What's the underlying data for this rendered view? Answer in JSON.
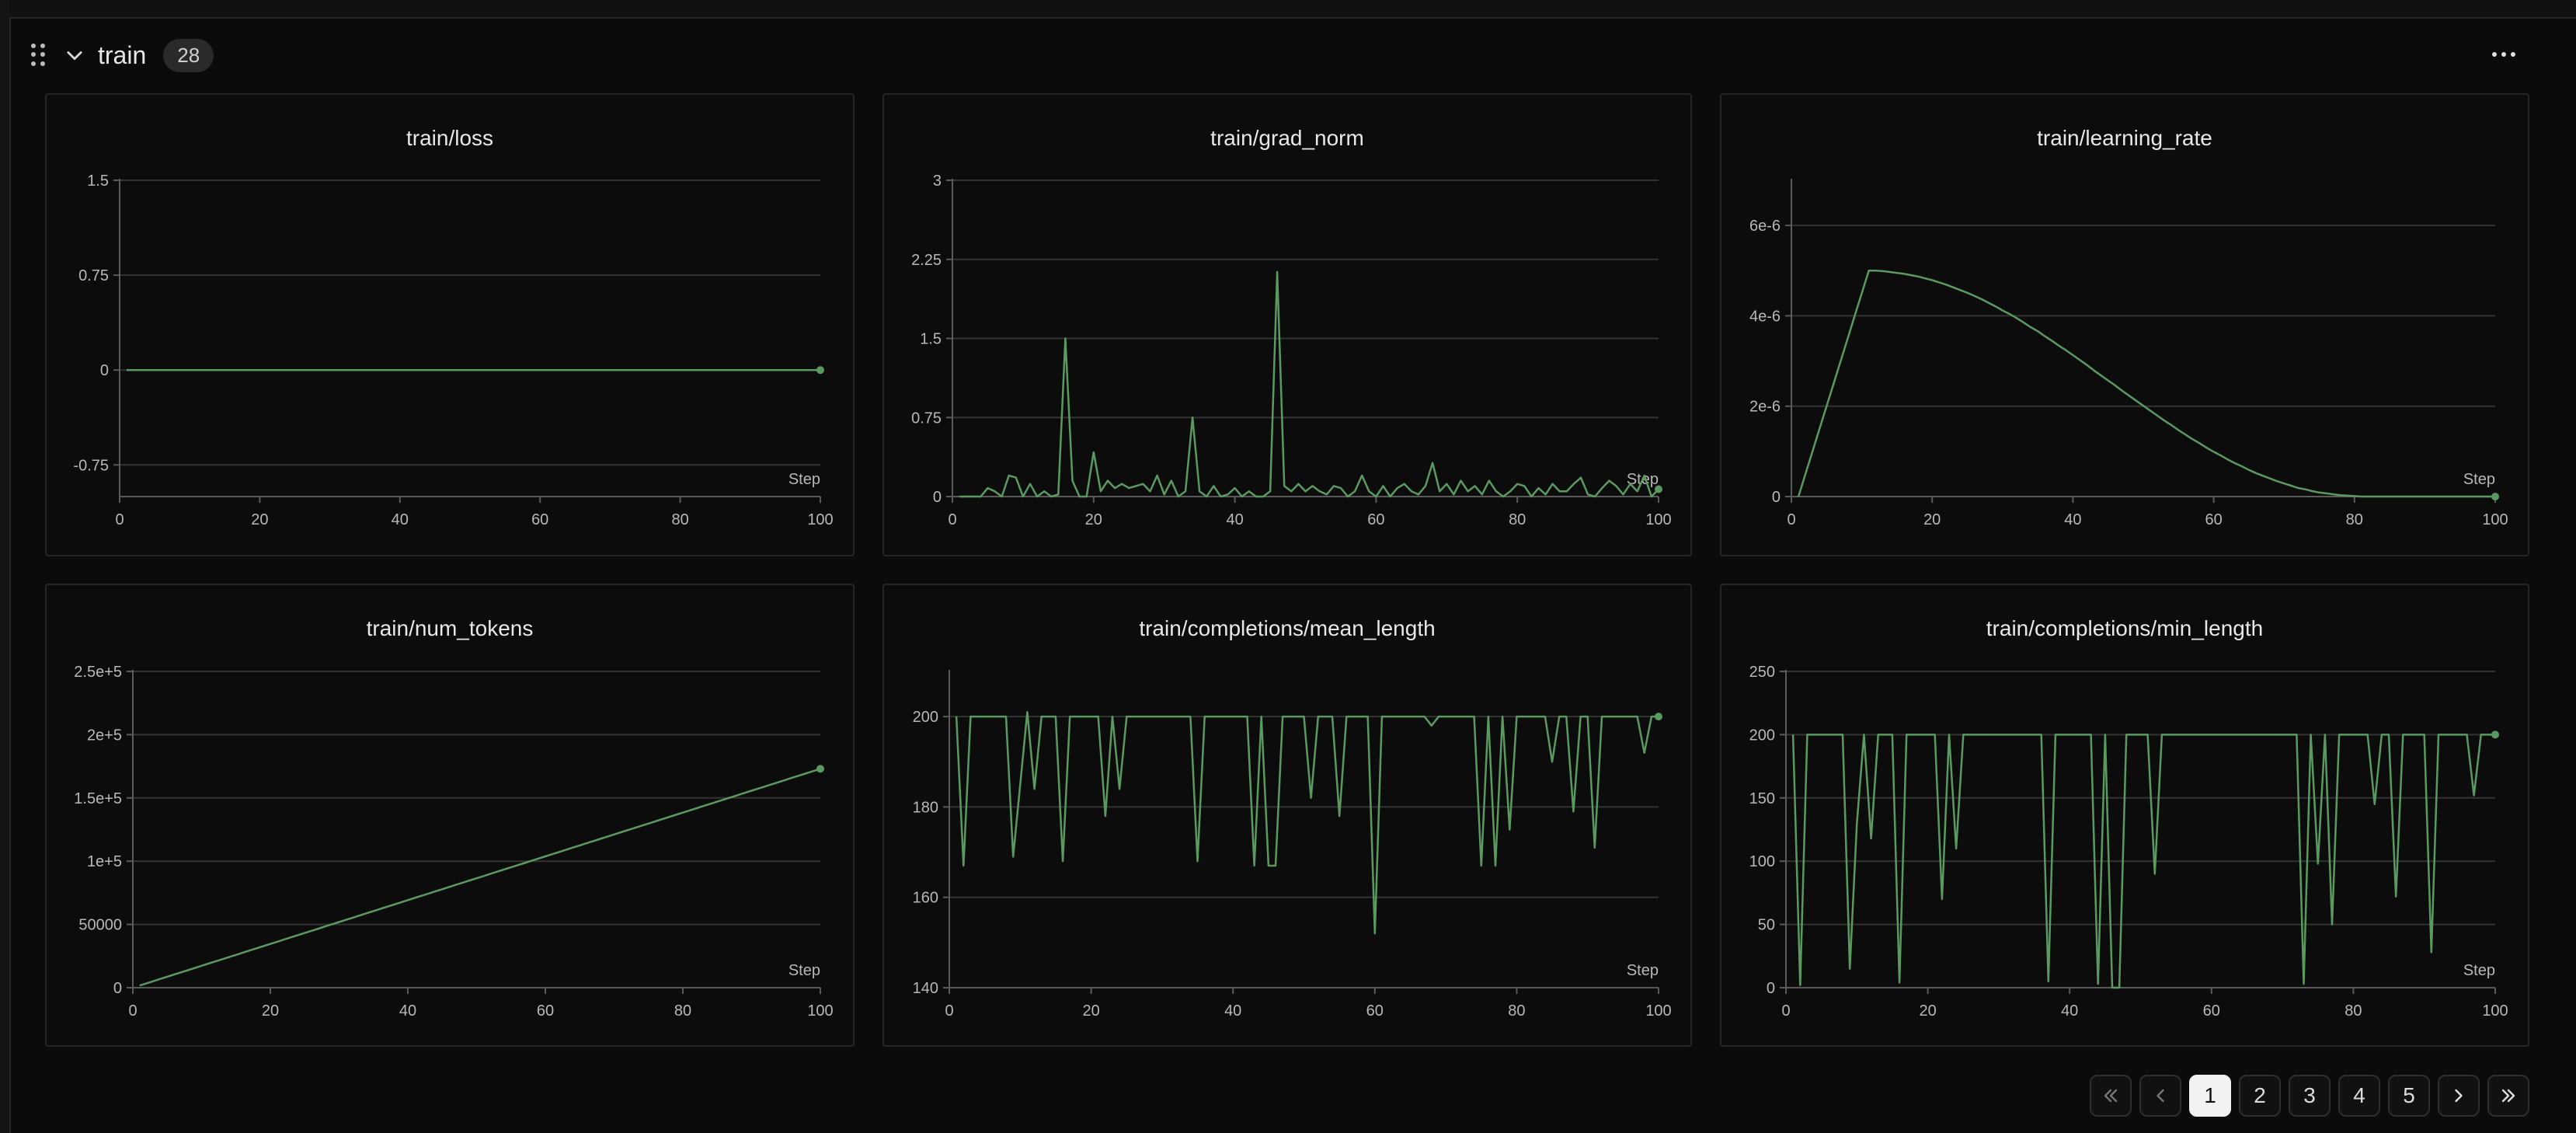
{
  "section": {
    "title": "train",
    "count": "28"
  },
  "colors": {
    "line": "#5a9a60",
    "grid": "#333333",
    "axis": "#5a5a5a",
    "tick": "#b8b8b8"
  },
  "pagination": {
    "pages": [
      "1",
      "2",
      "3",
      "4",
      "5"
    ],
    "active": "1"
  },
  "chart_data": [
    {
      "type": "line",
      "title": "train/loss",
      "xlabel": "Step",
      "ylabel": "",
      "xlim": [
        0,
        100
      ],
      "ylim": [
        -1,
        1.5
      ],
      "yticks": [
        1.5,
        0.75,
        0,
        -0.75
      ],
      "ytick_labels": [
        "1.5",
        "0.75",
        "0",
        "-0.75"
      ],
      "xticks": [
        0,
        20,
        40,
        60,
        80,
        100
      ],
      "xtick_labels": [
        "0",
        "20",
        "40",
        "60",
        "80",
        "100"
      ],
      "x_start": 1,
      "x_step": 1,
      "values": [
        0,
        0,
        0,
        0,
        0,
        0,
        0,
        0,
        0,
        0,
        0,
        0,
        0,
        0,
        0,
        0,
        0,
        0,
        0,
        0,
        0,
        0,
        0,
        0,
        0,
        0,
        0,
        0,
        0,
        0,
        0,
        0,
        0,
        0,
        0,
        0,
        0,
        0,
        0,
        0,
        0,
        0,
        0,
        0,
        0,
        0,
        0,
        0,
        0,
        0,
        0,
        0,
        0,
        0,
        0,
        0,
        0,
        0,
        0,
        0,
        0,
        0,
        0,
        0,
        0,
        0,
        0,
        0,
        0,
        0,
        0,
        0,
        0,
        0,
        0,
        0,
        0,
        0,
        0,
        0,
        0,
        0,
        0,
        0,
        0,
        0,
        0,
        0,
        0,
        0,
        0,
        0,
        0,
        0,
        0,
        0,
        0,
        0,
        0,
        0
      ],
      "grid": true
    },
    {
      "type": "line",
      "title": "train/grad_norm",
      "xlabel": "Step",
      "ylabel": "",
      "xlim": [
        0,
        100
      ],
      "ylim": [
        0,
        3
      ],
      "yticks": [
        3,
        2.25,
        1.5,
        0.75,
        0
      ],
      "ytick_labels": [
        "3",
        "2.25",
        "1.5",
        "0.75",
        "0"
      ],
      "xticks": [
        0,
        20,
        40,
        60,
        80,
        100
      ],
      "xtick_labels": [
        "0",
        "20",
        "40",
        "60",
        "80",
        "100"
      ],
      "x_start": 1,
      "x_step": 1,
      "values": [
        0,
        0,
        0,
        0,
        0.08,
        0.05,
        0,
        0.2,
        0.18,
        0,
        0.12,
        0,
        0.05,
        0,
        0.02,
        1.5,
        0.15,
        0,
        0,
        0.42,
        0.05,
        0.15,
        0.08,
        0.12,
        0.08,
        0.1,
        0.12,
        0.05,
        0.2,
        0.02,
        0.15,
        0,
        0.05,
        0.75,
        0.05,
        0,
        0.1,
        0,
        0.02,
        0.08,
        0,
        0.05,
        0,
        0,
        0.05,
        2.13,
        0.1,
        0.05,
        0.12,
        0.05,
        0.1,
        0.05,
        0.02,
        0.1,
        0.08,
        0,
        0.05,
        0.2,
        0.05,
        0,
        0.1,
        0,
        0.08,
        0.12,
        0.05,
        0.02,
        0.1,
        0.32,
        0.05,
        0.12,
        0.02,
        0.15,
        0.05,
        0.1,
        0.02,
        0.15,
        0.05,
        0,
        0.05,
        0.12,
        0.1,
        0,
        0.08,
        0.02,
        0.12,
        0.05,
        0.05,
        0.12,
        0.18,
        0.02,
        0,
        0.08,
        0.15,
        0.1,
        0.02,
        0.12,
        0.05,
        0.2,
        0,
        0.07
      ],
      "grid": true
    },
    {
      "type": "line",
      "title": "train/learning_rate",
      "xlabel": "Step",
      "ylabel": "",
      "xlim": [
        0,
        100
      ],
      "ylim": [
        0,
        7e-06
      ],
      "yticks": [
        6e-06,
        4e-06,
        2e-06,
        0
      ],
      "ytick_labels": [
        "6e-6",
        "4e-6",
        "2e-6",
        "0"
      ],
      "xticks": [
        0,
        20,
        40,
        60,
        80,
        100
      ],
      "xtick_labels": [
        "0",
        "20",
        "40",
        "60",
        "80",
        "100"
      ],
      "x_start": 1,
      "x_step": 1,
      "values": [
        0,
        5e-07,
        1e-06,
        1.5e-06,
        2e-06,
        2.5e-06,
        3e-06,
        3.5e-06,
        4e-06,
        4.5e-06,
        5e-06,
        5e-06,
        4.99e-06,
        4.97e-06,
        4.95e-06,
        4.93e-06,
        4.9e-06,
        4.87e-06,
        4.83e-06,
        4.79e-06,
        4.74e-06,
        4.69e-06,
        4.63e-06,
        4.57e-06,
        4.51e-06,
        4.44e-06,
        4.37e-06,
        4.29e-06,
        4.21e-06,
        4.12e-06,
        4.04e-06,
        3.95e-06,
        3.85e-06,
        3.75e-06,
        3.66e-06,
        3.55e-06,
        3.45e-06,
        3.34e-06,
        3.24e-06,
        3.13e-06,
        3.02e-06,
        2.91e-06,
        2.79e-06,
        2.68e-06,
        2.57e-06,
        2.46e-06,
        2.34e-06,
        2.23e-06,
        2.12e-06,
        2.01e-06,
        1.9e-06,
        1.79e-06,
        1.68e-06,
        1.58e-06,
        1.47e-06,
        1.37e-06,
        1.27e-06,
        1.18e-06,
        1.08e-06,
        9.9e-07,
        9.1e-07,
        8.2e-07,
        7.4e-07,
        6.7e-07,
        5.9e-07,
        5.2e-07,
        4.6e-07,
        4e-07,
        3.4e-07,
        2.9e-07,
        2.4e-07,
        1.9e-07,
        1.6e-07,
        1.2e-07,
        9e-08,
        7e-08,
        5e-08,
        3e-08,
        2e-08,
        1e-08,
        0,
        0,
        0,
        0,
        0,
        0,
        0,
        0,
        0,
        0,
        0,
        0,
        0,
        0,
        0,
        0,
        0,
        0,
        0,
        0
      ],
      "grid": true
    },
    {
      "type": "line",
      "title": "train/num_tokens",
      "xlabel": "Step",
      "ylabel": "",
      "xlim": [
        0,
        100
      ],
      "ylim": [
        0,
        250000
      ],
      "yticks": [
        250000,
        200000,
        150000,
        100000,
        50000,
        0
      ],
      "ytick_labels": [
        "2.5e+5",
        "2e+5",
        "1.5e+5",
        "1e+5",
        "50000",
        "0"
      ],
      "xticks": [
        0,
        20,
        40,
        60,
        80,
        100
      ],
      "xtick_labels": [
        "0",
        "20",
        "40",
        "60",
        "80",
        "100"
      ],
      "x_start": 1,
      "x_step": 1,
      "values": [
        1730,
        3460,
        5190,
        6920,
        8650,
        10380,
        12110,
        13840,
        15570,
        17300,
        19030,
        20760,
        22490,
        24220,
        25950,
        27680,
        29410,
        31140,
        32870,
        34600,
        36330,
        38060,
        39790,
        41520,
        43250,
        44980,
        46710,
        48440,
        50170,
        51900,
        53630,
        55360,
        57090,
        58820,
        60550,
        62280,
        64010,
        65740,
        67470,
        69200,
        70930,
        72660,
        74390,
        76120,
        77850,
        79580,
        81310,
        83040,
        84770,
        86500,
        88230,
        89960,
        91690,
        93420,
        95150,
        96880,
        98610,
        100340,
        102070,
        103800,
        105530,
        107260,
        108990,
        110720,
        112450,
        114180,
        115910,
        117640,
        119370,
        121100,
        122830,
        124560,
        126290,
        128020,
        129750,
        131480,
        133210,
        134940,
        136670,
        138400,
        140130,
        141860,
        143590,
        145320,
        147050,
        148780,
        150510,
        152240,
        153970,
        155700,
        157430,
        159160,
        160890,
        162620,
        164350,
        166080,
        167810,
        169540,
        171270,
        173000
      ],
      "grid": true
    },
    {
      "type": "line",
      "title": "train/completions/mean_length",
      "xlabel": "Step",
      "ylabel": "",
      "xlim": [
        0,
        100
      ],
      "ylim": [
        140,
        210
      ],
      "yticks": [
        200,
        180,
        160,
        140
      ],
      "ytick_labels": [
        "200",
        "180",
        "160",
        "140"
      ],
      "xticks": [
        0,
        20,
        40,
        60,
        80,
        100
      ],
      "xtick_labels": [
        "0",
        "20",
        "40",
        "60",
        "80",
        "100"
      ],
      "x_start": 1,
      "x_step": 1,
      "values": [
        200,
        167,
        200,
        200,
        200,
        200,
        200,
        200,
        169,
        185,
        201,
        184,
        200,
        200,
        200,
        168,
        200,
        200,
        200,
        200,
        200,
        178,
        200,
        184,
        200,
        200,
        200,
        200,
        200,
        200,
        200,
        200,
        200,
        200,
        168,
        200,
        200,
        200,
        200,
        200,
        200,
        200,
        167,
        200,
        167,
        167,
        200,
        200,
        200,
        200,
        182,
        200,
        200,
        200,
        178,
        200,
        200,
        200,
        200,
        152,
        200,
        200,
        200,
        200,
        200,
        200,
        200,
        198,
        200,
        200,
        200,
        200,
        200,
        200,
        167,
        200,
        167,
        200,
        175,
        200,
        200,
        200,
        200,
        200,
        190,
        200,
        200,
        179,
        200,
        200,
        171,
        200,
        200,
        200,
        200,
        200,
        200,
        192,
        200,
        200
      ],
      "grid": true
    },
    {
      "type": "line",
      "title": "train/completions/min_length",
      "xlabel": "Step",
      "ylabel": "",
      "xlim": [
        0,
        100
      ],
      "ylim": [
        0,
        250
      ],
      "yticks": [
        250,
        200,
        150,
        100,
        50,
        0
      ],
      "ytick_labels": [
        "250",
        "200",
        "150",
        "100",
        "50",
        "0"
      ],
      "xticks": [
        0,
        20,
        40,
        60,
        80,
        100
      ],
      "xtick_labels": [
        "0",
        "20",
        "40",
        "60",
        "80",
        "100"
      ],
      "x_start": 1,
      "x_step": 1,
      "values": [
        200,
        2,
        200,
        200,
        200,
        200,
        200,
        200,
        15,
        130,
        200,
        118,
        200,
        200,
        200,
        4,
        200,
        200,
        200,
        200,
        200,
        70,
        200,
        110,
        200,
        200,
        200,
        200,
        200,
        200,
        200,
        200,
        200,
        200,
        200,
        200,
        5,
        200,
        200,
        200,
        200,
        200,
        200,
        3,
        200,
        0,
        0,
        200,
        200,
        200,
        200,
        90,
        200,
        200,
        200,
        200,
        200,
        200,
        200,
        200,
        200,
        200,
        200,
        200,
        200,
        200,
        200,
        200,
        200,
        200,
        200,
        200,
        3,
        200,
        98,
        200,
        50,
        200,
        200,
        200,
        200,
        200,
        145,
        200,
        200,
        72,
        200,
        200,
        200,
        200,
        28,
        200,
        200,
        200,
        200,
        200,
        152,
        200,
        200,
        200
      ],
      "grid": true
    }
  ]
}
